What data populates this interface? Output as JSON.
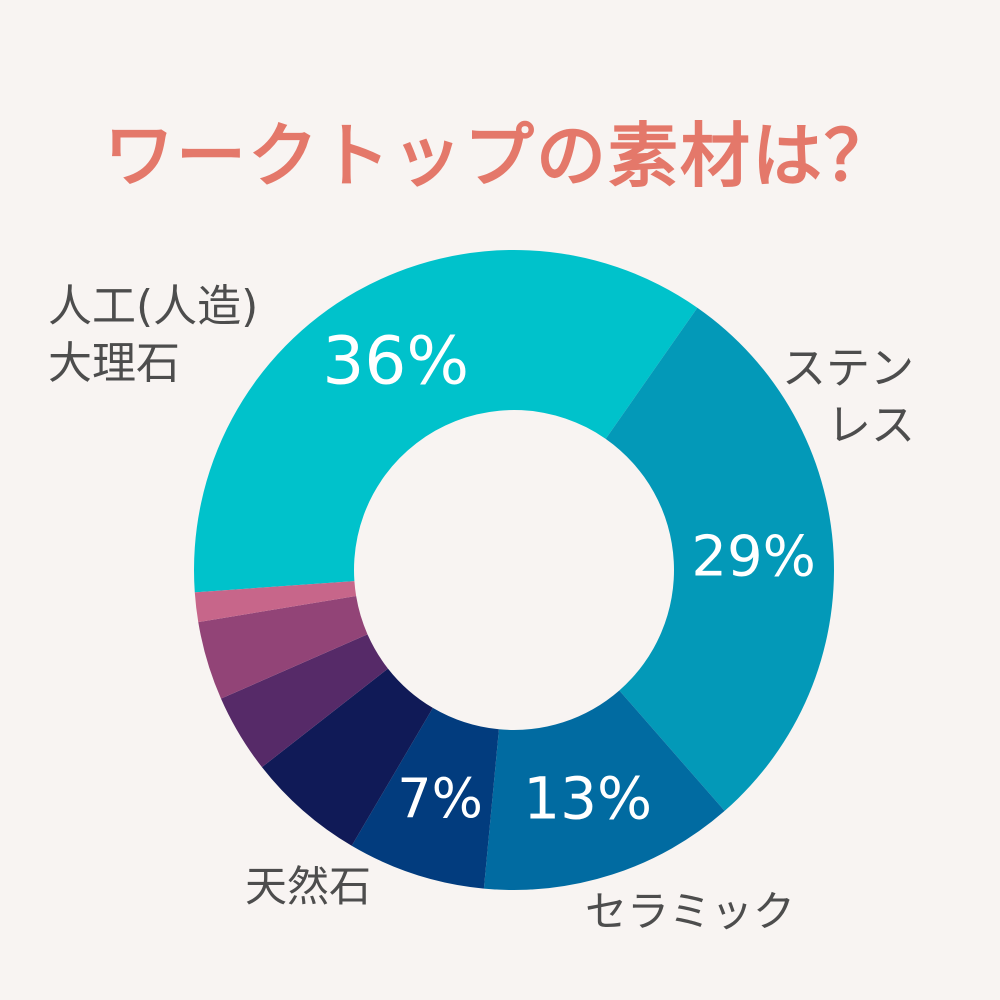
{
  "title": "ワークトップの素材は？",
  "chart_data": {
    "type": "pie",
    "donut": true,
    "title": "ワークトップの素材は？",
    "slices": [
      {
        "label": "人工(人造)大理石",
        "label_lines": [
          "人工(人造)",
          "大理石"
        ],
        "value": 36,
        "value_label": "36%",
        "color": "#00c2cb"
      },
      {
        "label": "ステンレス",
        "label_lines": [
          "ステン",
          "レス"
        ],
        "value": 29,
        "value_label": "29%",
        "color": "#0399b8"
      },
      {
        "label": "セラミック",
        "label_lines": [
          "セラミック"
        ],
        "value": 13,
        "value_label": "13%",
        "color": "#016ba1"
      },
      {
        "label": "天然石",
        "label_lines": [
          "天然石"
        ],
        "value": 7,
        "value_label": "7%",
        "color": "#023c7e"
      },
      {
        "label": "",
        "label_lines": [],
        "value": 6,
        "value_label": "",
        "color": "#101a57"
      },
      {
        "label": "",
        "label_lines": [],
        "value": 4,
        "value_label": "",
        "color": "#562a68"
      },
      {
        "label": "",
        "label_lines": [],
        "value": 4,
        "value_label": "",
        "color": "#924477"
      },
      {
        "label": "",
        "label_lines": [],
        "value": 1.5,
        "value_label": "",
        "color": "#c7668a"
      }
    ]
  }
}
